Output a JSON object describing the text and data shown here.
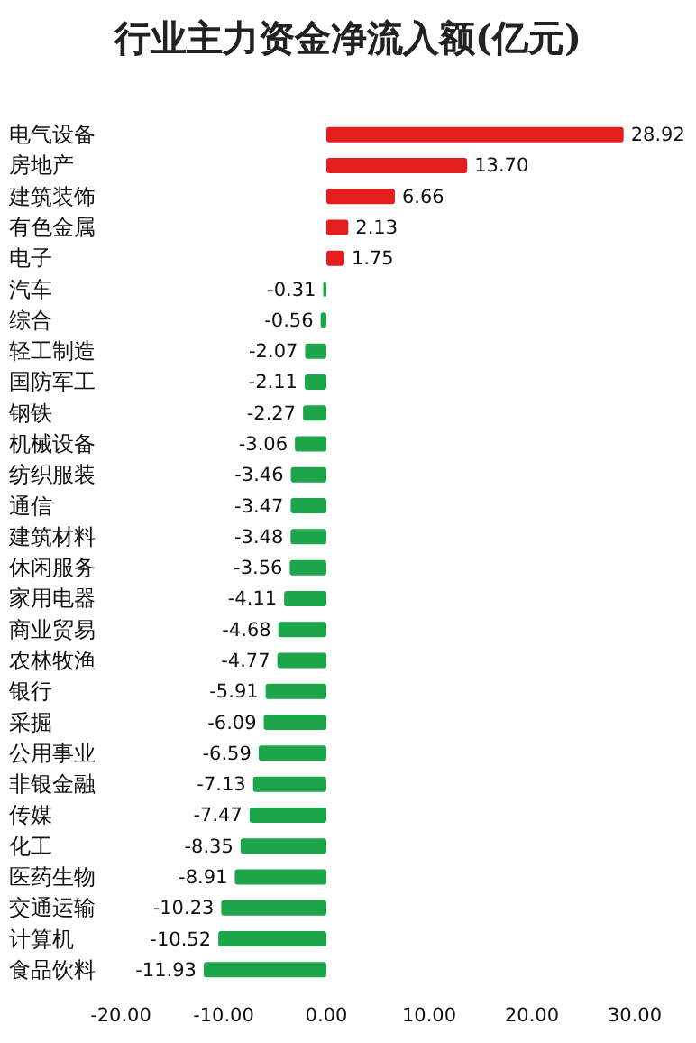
{
  "chart_data": {
    "type": "bar",
    "orientation": "horizontal",
    "title": "行业主力资金净流入额(亿元)",
    "categories": [
      "电气设备",
      "房地产",
      "建筑装饰",
      "有色金属",
      "电子",
      "汽车",
      "综合",
      "轻工制造",
      "国防军工",
      "钢铁",
      "机械设备",
      "纺织服装",
      "通信",
      "建筑材料",
      "休闲服务",
      "家用电器",
      "商业贸易",
      "农林牧渔",
      "银行",
      "采掘",
      "公用事业",
      "非银金融",
      "传媒",
      "化工",
      "医药生物",
      "交通运输",
      "计算机",
      "食品饮料"
    ],
    "values": [
      28.92,
      13.7,
      6.66,
      2.13,
      1.75,
      -0.31,
      -0.56,
      -2.07,
      -2.11,
      -2.27,
      -3.06,
      -3.46,
      -3.47,
      -3.48,
      -3.56,
      -4.11,
      -4.68,
      -4.77,
      -5.91,
      -6.09,
      -6.59,
      -7.13,
      -7.47,
      -8.35,
      -8.91,
      -10.23,
      -10.52,
      -11.93
    ],
    "value_labels": [
      "28.92",
      "13.70",
      "6.66",
      "2.13",
      "1.75",
      "-0.31",
      "-0.56",
      "-2.07",
      "-2.11",
      "-2.27",
      "-3.06",
      "-3.46",
      "-3.47",
      "-3.48",
      "-3.56",
      "-4.11",
      "-4.68",
      "-4.77",
      "-5.91",
      "-6.09",
      "-6.59",
      "-7.13",
      "-7.47",
      "-8.35",
      "-8.91",
      "-10.23",
      "-10.52",
      "-11.93"
    ],
    "colors": [
      "#e41e1e",
      "#e41e1e",
      "#e41e1e",
      "#e41e1e",
      "#e41e1e",
      "#1ca54a",
      "#1ca54a",
      "#1ca54a",
      "#1ca54a",
      "#1ca54a",
      "#1ca54a",
      "#1ca54a",
      "#1ca54a",
      "#1ca54a",
      "#1ca54a",
      "#1ca54a",
      "#1ca54a",
      "#1ca54a",
      "#1ca54a",
      "#1ca54a",
      "#1ca54a",
      "#1ca54a",
      "#1ca54a",
      "#1ca54a",
      "#1ca54a",
      "#1ca54a",
      "#1ca54a",
      "#1ca54a"
    ],
    "xlim": [
      -20,
      30
    ],
    "xticks": [
      {
        "value": -20,
        "label": "-20.00"
      },
      {
        "value": -10,
        "label": "-10.00"
      },
      {
        "value": 0,
        "label": "0.00"
      },
      {
        "value": 10,
        "label": "10.00"
      },
      {
        "value": 20,
        "label": "20.00"
      },
      {
        "value": 30,
        "label": "30.00"
      }
    ]
  }
}
